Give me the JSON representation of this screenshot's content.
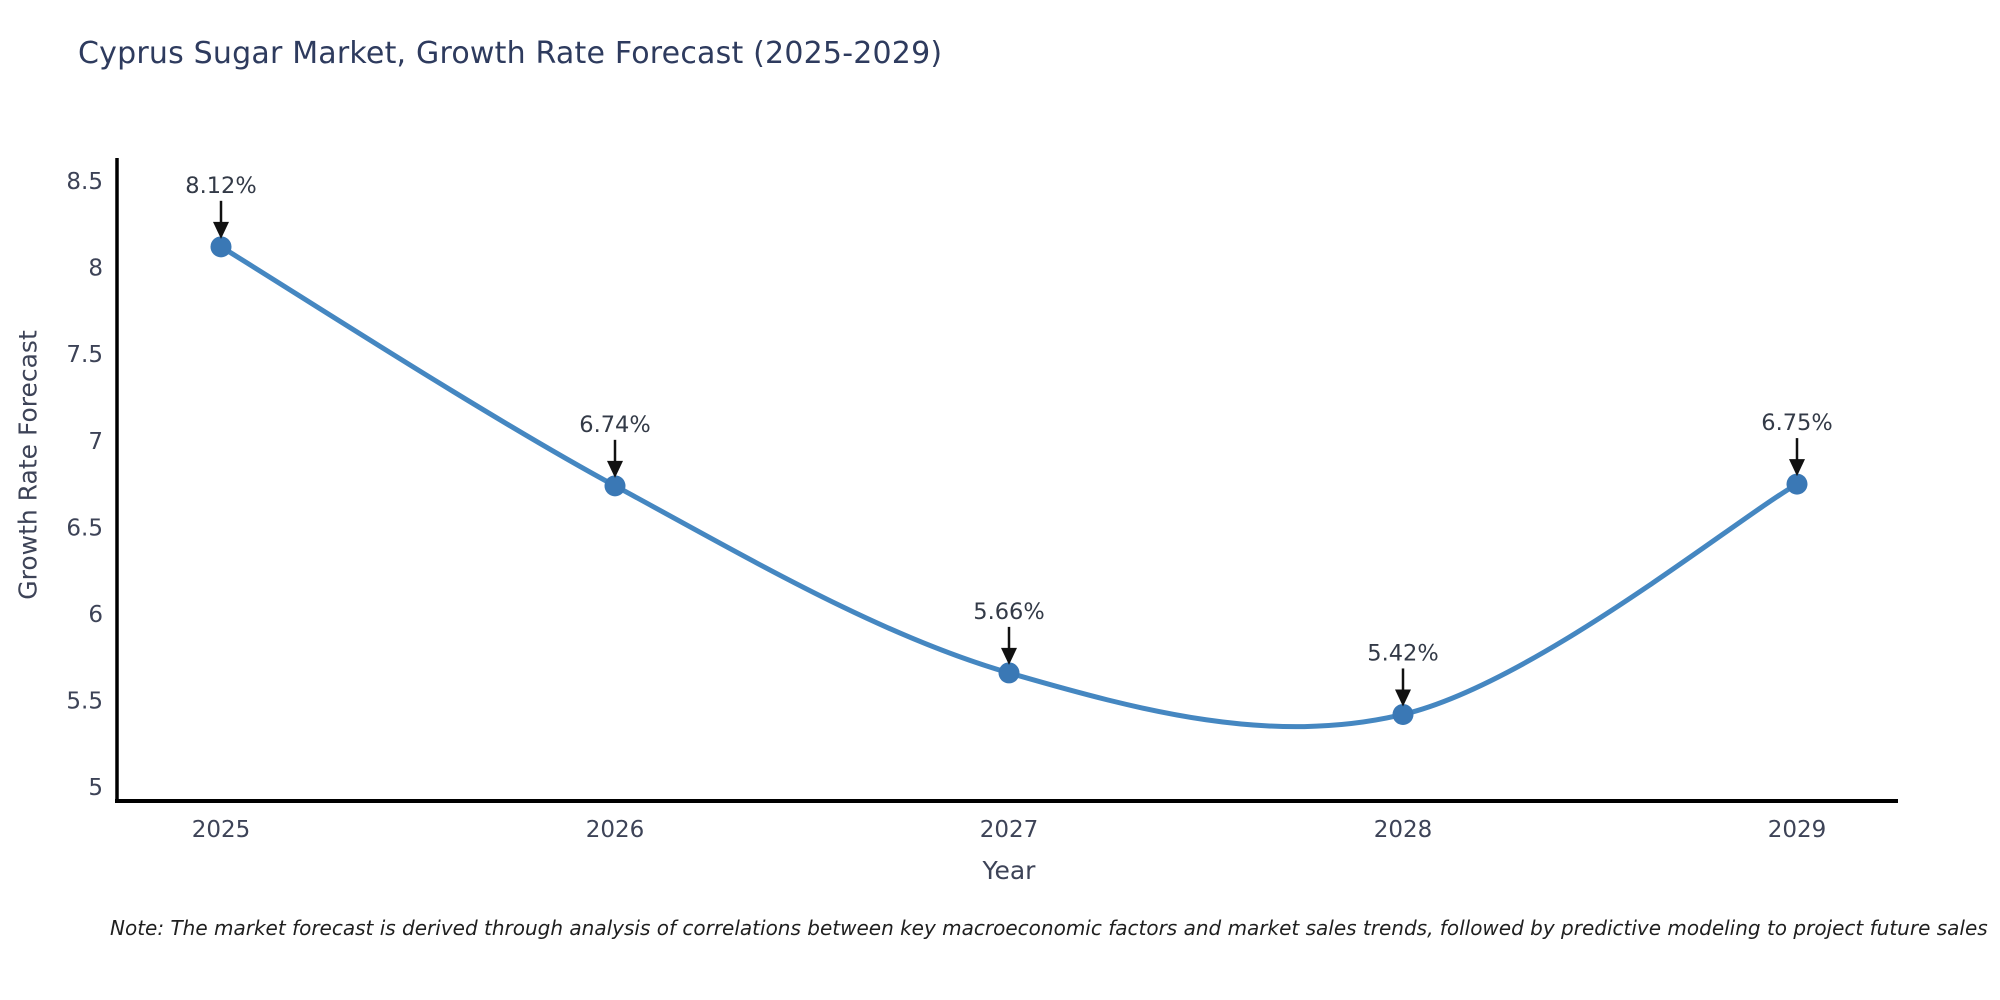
{
  "chart": {
    "title": "Cyprus Sugar Market, Growth Rate Forecast (2025-2029)",
    "xlabel": "Year",
    "ylabel": "Growth Rate Forecast",
    "note": "Note: The market forecast is derived through analysis of correlations between key macroeconomic factors and market sales trends, followed by predictive modeling to project future sales"
  },
  "chart_data": {
    "type": "line",
    "x": [
      "2025",
      "2026",
      "2027",
      "2028",
      "2029"
    ],
    "series": [
      {
        "name": "Growth Rate Forecast",
        "values": [
          8.12,
          6.74,
          5.66,
          5.42,
          6.75
        ]
      }
    ],
    "point_labels": [
      "8.12%",
      "6.74%",
      "5.66%",
      "5.42%",
      "6.75%"
    ],
    "yticks": [
      "8.5",
      "8",
      "7.5",
      "7",
      "6.5",
      "6",
      "5.5",
      "5"
    ],
    "ylim": [
      4.9,
      8.63
    ],
    "grid": false,
    "legend": "none",
    "smooth": true,
    "colors": {
      "line": "#4587c1",
      "marker": "#3a78b5",
      "annotation_arrow": "#111111",
      "annotation_text": "#333a47",
      "tick_text": "#3d4357",
      "axis_line": "#000000"
    }
  }
}
